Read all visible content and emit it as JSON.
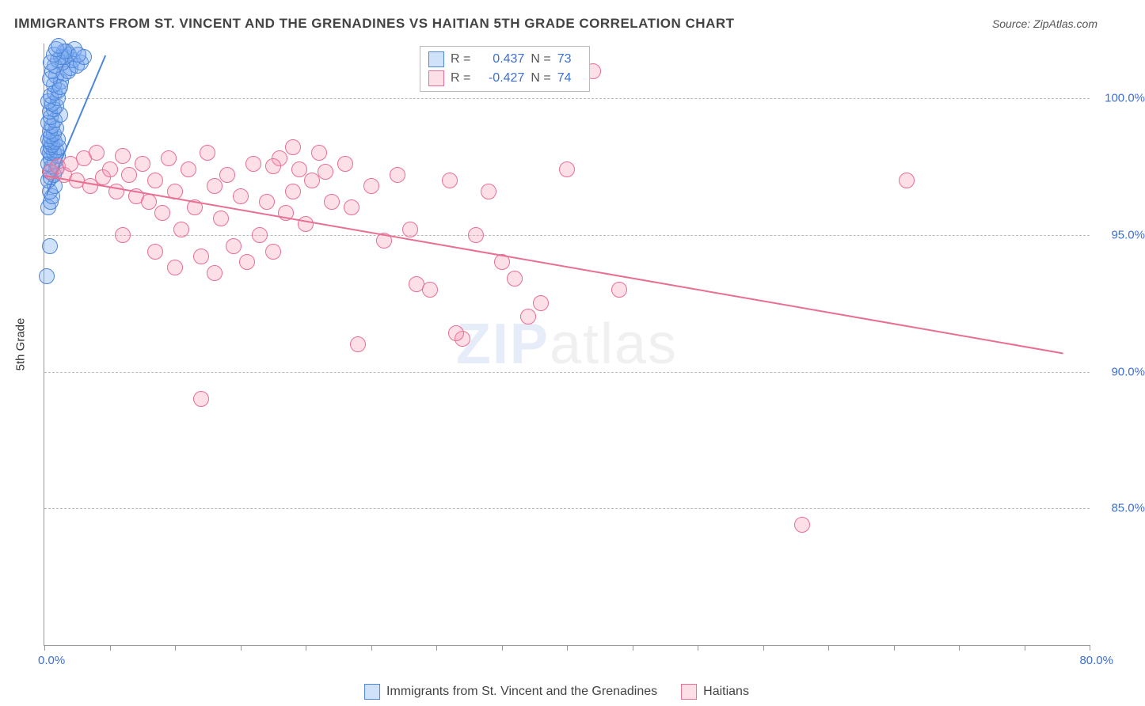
{
  "title": "IMMIGRANTS FROM ST. VINCENT AND THE GRENADINES VS HAITIAN 5TH GRADE CORRELATION CHART",
  "source": "Source: ZipAtlas.com",
  "watermark": {
    "part1": "ZIP",
    "part2": "atlas"
  },
  "ylabel": "5th Grade",
  "chart": {
    "type": "scatter",
    "plot_bg": "#ffffff",
    "grid_color": "#bbbbbb",
    "axis_color": "#999999",
    "tick_label_color": "#3b6fd6",
    "label_color": "#333333",
    "xlim": [
      0,
      80
    ],
    "ylim": [
      80,
      102
    ],
    "yticks": [
      {
        "v": 100,
        "label": "100.0%"
      },
      {
        "v": 95,
        "label": "95.0%"
      },
      {
        "v": 90,
        "label": "90.0%"
      },
      {
        "v": 85,
        "label": "85.0%"
      }
    ],
    "xticks_minor": [
      0,
      5,
      10,
      15,
      20,
      25,
      30,
      35,
      40,
      45,
      50,
      55,
      60,
      65,
      70,
      75,
      80
    ],
    "xaxis_min_label": "0.0%",
    "xaxis_max_label": "80.0%",
    "marker_radius": 10,
    "marker_border_width": 1.5,
    "series": [
      {
        "name": "Immigrants from St. Vincent and the Grenadines",
        "color_fill": "rgba(120,170,240,0.35)",
        "color_stroke": "#4f86d8",
        "points": [
          [
            0.2,
            93.5
          ],
          [
            0.4,
            94.6
          ],
          [
            0.3,
            96.0
          ],
          [
            0.5,
            96.2
          ],
          [
            0.6,
            96.4
          ],
          [
            0.4,
            96.6
          ],
          [
            0.8,
            96.8
          ],
          [
            0.3,
            97.0
          ],
          [
            0.5,
            97.1
          ],
          [
            0.7,
            97.2
          ],
          [
            0.4,
            97.3
          ],
          [
            0.9,
            97.4
          ],
          [
            0.6,
            97.5
          ],
          [
            0.3,
            97.6
          ],
          [
            0.8,
            97.7
          ],
          [
            0.5,
            97.8
          ],
          [
            1.0,
            97.9
          ],
          [
            0.4,
            98.0
          ],
          [
            0.7,
            98.0
          ],
          [
            0.3,
            98.1
          ],
          [
            0.9,
            98.1
          ],
          [
            0.5,
            98.2
          ],
          [
            1.1,
            98.2
          ],
          [
            0.6,
            98.3
          ],
          [
            0.4,
            98.4
          ],
          [
            0.8,
            98.4
          ],
          [
            0.3,
            98.5
          ],
          [
            1.0,
            98.5
          ],
          [
            0.5,
            98.6
          ],
          [
            0.7,
            98.7
          ],
          [
            0.4,
            98.8
          ],
          [
            0.9,
            98.9
          ],
          [
            0.6,
            99.0
          ],
          [
            0.3,
            99.1
          ],
          [
            0.8,
            99.2
          ],
          [
            0.5,
            99.3
          ],
          [
            1.2,
            99.4
          ],
          [
            0.4,
            99.5
          ],
          [
            0.7,
            99.6
          ],
          [
            0.9,
            99.7
          ],
          [
            0.6,
            99.8
          ],
          [
            0.3,
            99.9
          ],
          [
            1.0,
            100.0
          ],
          [
            0.5,
            100.1
          ],
          [
            0.8,
            100.2
          ],
          [
            1.1,
            100.3
          ],
          [
            0.7,
            100.5
          ],
          [
            1.3,
            100.6
          ],
          [
            0.9,
            100.8
          ],
          [
            1.5,
            100.9
          ],
          [
            1.8,
            101.0
          ],
          [
            2.0,
            101.1
          ],
          [
            1.4,
            101.3
          ],
          [
            2.2,
            101.4
          ],
          [
            1.6,
            101.5
          ],
          [
            2.5,
            101.2
          ],
          [
            1.9,
            101.6
          ],
          [
            2.8,
            101.3
          ],
          [
            1.7,
            101.7
          ],
          [
            2.3,
            101.8
          ],
          [
            3.0,
            101.5
          ],
          [
            2.6,
            101.6
          ],
          [
            1.2,
            100.4
          ],
          [
            0.4,
            100.7
          ],
          [
            0.6,
            101.0
          ],
          [
            0.8,
            101.2
          ],
          [
            1.0,
            101.4
          ],
          [
            1.3,
            101.5
          ],
          [
            1.5,
            101.7
          ],
          [
            0.5,
            101.3
          ],
          [
            0.7,
            101.6
          ],
          [
            0.9,
            101.8
          ],
          [
            1.1,
            101.9
          ]
        ],
        "trend": {
          "x1": 0.2,
          "y1": 96.5,
          "x2": 4.7,
          "y2": 101.6,
          "width": 2
        }
      },
      {
        "name": "Haitians",
        "color_fill": "rgba(250,150,180,0.30)",
        "color_stroke": "#e86f92",
        "points": [
          [
            0.5,
            97.3
          ],
          [
            1.0,
            97.5
          ],
          [
            1.5,
            97.2
          ],
          [
            2.0,
            97.6
          ],
          [
            2.5,
            97.0
          ],
          [
            3.0,
            97.8
          ],
          [
            3.5,
            96.8
          ],
          [
            4.0,
            98.0
          ],
          [
            4.5,
            97.1
          ],
          [
            5.0,
            97.4
          ],
          [
            5.5,
            96.6
          ],
          [
            6.0,
            97.9
          ],
          [
            6.5,
            97.2
          ],
          [
            7.0,
            96.4
          ],
          [
            7.5,
            97.6
          ],
          [
            8.0,
            96.2
          ],
          [
            8.5,
            97.0
          ],
          [
            9.0,
            95.8
          ],
          [
            9.5,
            97.8
          ],
          [
            10.0,
            96.6
          ],
          [
            10.5,
            95.2
          ],
          [
            11.0,
            97.4
          ],
          [
            11.5,
            96.0
          ],
          [
            12.0,
            94.2
          ],
          [
            12.5,
            98.0
          ],
          [
            13.0,
            96.8
          ],
          [
            13.5,
            95.6
          ],
          [
            14.0,
            97.2
          ],
          [
            14.5,
            94.6
          ],
          [
            15.0,
            96.4
          ],
          [
            15.5,
            94.0
          ],
          [
            16.0,
            97.6
          ],
          [
            16.5,
            95.0
          ],
          [
            17.0,
            96.2
          ],
          [
            17.5,
            94.4
          ],
          [
            18.0,
            97.8
          ],
          [
            18.5,
            95.8
          ],
          [
            19.0,
            96.6
          ],
          [
            19.5,
            97.4
          ],
          [
            20.0,
            95.4
          ],
          [
            20.5,
            97.0
          ],
          [
            21.0,
            98.0
          ],
          [
            22.0,
            96.2
          ],
          [
            23.0,
            97.6
          ],
          [
            24.0,
            91.0
          ],
          [
            25.0,
            96.8
          ],
          [
            26.0,
            94.8
          ],
          [
            27.0,
            97.2
          ],
          [
            28.0,
            95.2
          ],
          [
            28.5,
            93.2
          ],
          [
            29.5,
            93.0
          ],
          [
            31.0,
            97.0
          ],
          [
            32.0,
            91.2
          ],
          [
            33.0,
            95.0
          ],
          [
            35.0,
            94.0
          ],
          [
            36.0,
            93.4
          ],
          [
            38.0,
            92.5
          ],
          [
            40.0,
            97.4
          ],
          [
            42.0,
            101.0
          ],
          [
            44.0,
            93.0
          ],
          [
            58.0,
            84.4
          ],
          [
            66.0,
            97.0
          ],
          [
            12.0,
            89.0
          ],
          [
            6.0,
            95.0
          ],
          [
            8.5,
            94.4
          ],
          [
            10.0,
            93.8
          ],
          [
            13.0,
            93.6
          ],
          [
            17.5,
            97.5
          ],
          [
            19.0,
            98.2
          ],
          [
            21.5,
            97.3
          ],
          [
            23.5,
            96.0
          ],
          [
            31.5,
            91.4
          ],
          [
            34.0,
            96.6
          ],
          [
            37.0,
            92.0
          ]
        ],
        "trend": {
          "x1": 0,
          "y1": 97.2,
          "x2": 78,
          "y2": 90.7,
          "width": 2
        }
      }
    ]
  },
  "stats_legend": {
    "border_color": "#bbbbbb",
    "rows": [
      {
        "swatch_fill": "rgba(120,170,240,0.35)",
        "swatch_stroke": "#4f86d8",
        "r": "0.437",
        "n": "73"
      },
      {
        "swatch_fill": "rgba(250,150,180,0.30)",
        "swatch_stroke": "#e86f92",
        "r": "-0.427",
        "n": "74"
      }
    ],
    "r_label": "R =",
    "n_label": "N ="
  },
  "bottom_legend": {
    "items": [
      {
        "swatch_fill": "rgba(120,170,240,0.35)",
        "swatch_stroke": "#4f86d8",
        "label": "Immigrants from St. Vincent and the Grenadines"
      },
      {
        "swatch_fill": "rgba(250,150,180,0.30)",
        "swatch_stroke": "#e86f92",
        "label": "Haitians"
      }
    ]
  }
}
